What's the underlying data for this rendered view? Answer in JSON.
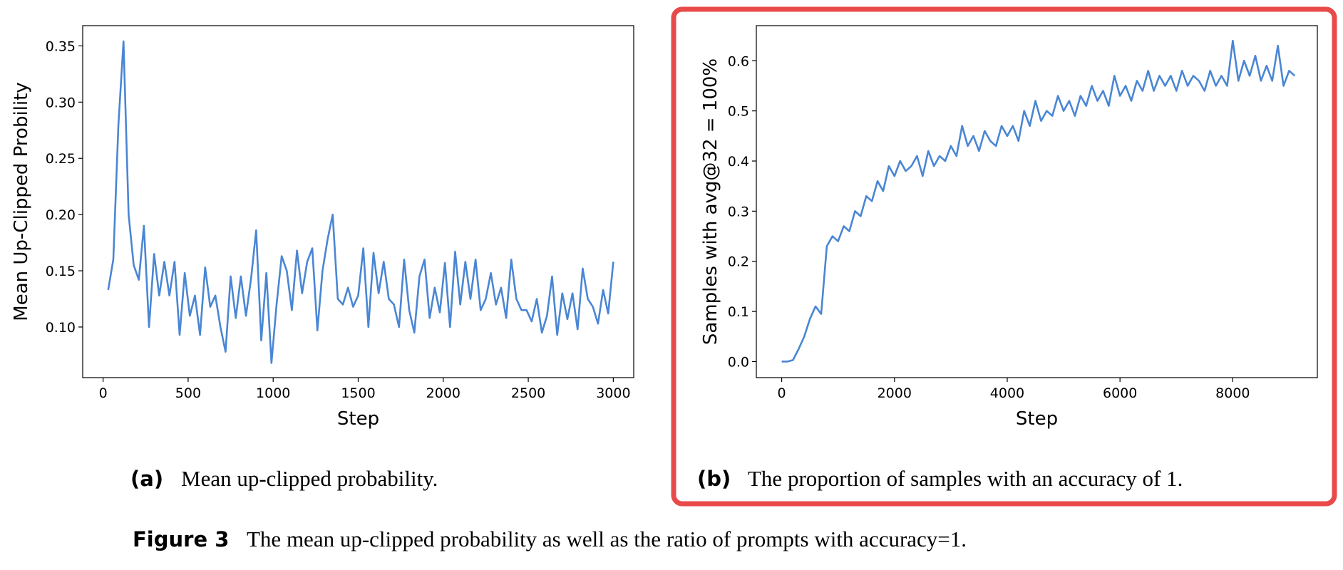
{
  "chart_data": [
    {
      "type": "line",
      "x_label": "Step",
      "y_label": "Mean Up-Clipped Probility",
      "color": "#4a86d4",
      "subcaption_label": "(a)",
      "subcaption": "Mean up-clipped probability.",
      "xlim": [
        -120,
        3120
      ],
      "ylim": [
        0.055,
        0.368
      ],
      "xticks": [
        0,
        500,
        1000,
        1500,
        2000,
        2500,
        3000
      ],
      "yticks": [
        {
          "value": 0.1,
          "label": "0.10"
        },
        0.15,
        {
          "value": 0.2,
          "label": "0.20"
        },
        0.25,
        {
          "value": 0.3,
          "label": "0.30"
        },
        0.35
      ],
      "x": [
        30,
        60,
        90,
        120,
        150,
        180,
        210,
        240,
        270,
        300,
        330,
        360,
        390,
        420,
        450,
        480,
        510,
        540,
        570,
        600,
        630,
        660,
        690,
        720,
        750,
        780,
        810,
        840,
        870,
        900,
        930,
        960,
        990,
        1020,
        1050,
        1080,
        1110,
        1140,
        1170,
        1200,
        1230,
        1260,
        1290,
        1320,
        1350,
        1380,
        1410,
        1440,
        1470,
        1500,
        1530,
        1560,
        1590,
        1620,
        1650,
        1680,
        1710,
        1740,
        1770,
        1800,
        1830,
        1860,
        1890,
        1920,
        1950,
        1980,
        2010,
        2040,
        2070,
        2100,
        2130,
        2160,
        2190,
        2220,
        2250,
        2280,
        2310,
        2340,
        2370,
        2400,
        2430,
        2460,
        2490,
        2520,
        2550,
        2580,
        2610,
        2640,
        2670,
        2700,
        2730,
        2760,
        2790,
        2820,
        2850,
        2880,
        2910,
        2940,
        2970,
        3000
      ],
      "values": [
        0.133,
        0.16,
        0.28,
        0.354,
        0.2,
        0.155,
        0.142,
        0.19,
        0.1,
        0.165,
        0.128,
        0.158,
        0.128,
        0.158,
        0.093,
        0.148,
        0.11,
        0.128,
        0.093,
        0.153,
        0.118,
        0.128,
        0.1,
        0.078,
        0.145,
        0.108,
        0.145,
        0.11,
        0.143,
        0.186,
        0.088,
        0.148,
        0.068,
        0.12,
        0.163,
        0.15,
        0.115,
        0.168,
        0.13,
        0.158,
        0.17,
        0.097,
        0.15,
        0.178,
        0.2,
        0.125,
        0.12,
        0.135,
        0.118,
        0.128,
        0.17,
        0.1,
        0.166,
        0.13,
        0.158,
        0.125,
        0.12,
        0.1,
        0.16,
        0.115,
        0.095,
        0.145,
        0.16,
        0.108,
        0.135,
        0.113,
        0.157,
        0.1,
        0.167,
        0.12,
        0.158,
        0.125,
        0.16,
        0.115,
        0.125,
        0.148,
        0.12,
        0.135,
        0.108,
        0.16,
        0.125,
        0.115,
        0.115,
        0.105,
        0.125,
        0.095,
        0.11,
        0.145,
        0.093,
        0.13,
        0.107,
        0.13,
        0.098,
        0.152,
        0.125,
        0.118,
        0.103,
        0.133,
        0.112,
        0.158
      ]
    },
    {
      "type": "line",
      "x_label": "Step",
      "y_label": "Samples with avg@32 = 100%",
      "color": "#4a86d4",
      "subcaption_label": "(b)",
      "subcaption": "The proportion of samples with an accuracy of 1.",
      "xlim": [
        -450,
        9500
      ],
      "ylim": [
        -0.032,
        0.67
      ],
      "xticks": [
        0,
        2000,
        4000,
        6000,
        8000
      ],
      "yticks": [
        {
          "value": 0.0,
          "label": "0.0"
        },
        0.1,
        0.2,
        0.3,
        0.4,
        0.5,
        0.6
      ],
      "x": [
        0,
        100,
        200,
        300,
        400,
        500,
        600,
        700,
        800,
        900,
        1000,
        1100,
        1200,
        1300,
        1400,
        1500,
        1600,
        1700,
        1800,
        1900,
        2000,
        2100,
        2200,
        2300,
        2400,
        2500,
        2600,
        2700,
        2800,
        2900,
        3000,
        3100,
        3200,
        3300,
        3400,
        3500,
        3600,
        3700,
        3800,
        3900,
        4000,
        4100,
        4200,
        4300,
        4400,
        4500,
        4600,
        4700,
        4800,
        4900,
        5000,
        5100,
        5200,
        5300,
        5400,
        5500,
        5600,
        5700,
        5800,
        5900,
        6000,
        6100,
        6200,
        6300,
        6400,
        6500,
        6600,
        6700,
        6800,
        6900,
        7000,
        7100,
        7200,
        7300,
        7400,
        7500,
        7600,
        7700,
        7800,
        7900,
        8000,
        8100,
        8200,
        8300,
        8400,
        8500,
        8600,
        8700,
        8800,
        8900,
        9000,
        9100
      ],
      "values": [
        0,
        0,
        0.003,
        0.025,
        0.05,
        0.085,
        0.11,
        0.095,
        0.23,
        0.25,
        0.24,
        0.27,
        0.26,
        0.3,
        0.29,
        0.33,
        0.32,
        0.36,
        0.34,
        0.39,
        0.37,
        0.4,
        0.38,
        0.39,
        0.41,
        0.37,
        0.42,
        0.39,
        0.41,
        0.4,
        0.43,
        0.41,
        0.47,
        0.43,
        0.45,
        0.42,
        0.46,
        0.44,
        0.43,
        0.47,
        0.45,
        0.47,
        0.44,
        0.5,
        0.47,
        0.52,
        0.48,
        0.5,
        0.49,
        0.53,
        0.5,
        0.52,
        0.49,
        0.53,
        0.51,
        0.55,
        0.52,
        0.54,
        0.51,
        0.57,
        0.53,
        0.55,
        0.52,
        0.56,
        0.54,
        0.58,
        0.54,
        0.57,
        0.55,
        0.57,
        0.54,
        0.58,
        0.55,
        0.57,
        0.56,
        0.54,
        0.58,
        0.55,
        0.57,
        0.55,
        0.64,
        0.56,
        0.6,
        0.57,
        0.61,
        0.56,
        0.59,
        0.56,
        0.63,
        0.55,
        0.58,
        0.57
      ]
    }
  ],
  "figure_caption": {
    "label": "Figure 3",
    "text": "The mean up-clipped probability as well as the ratio of prompts with accuracy=1."
  }
}
